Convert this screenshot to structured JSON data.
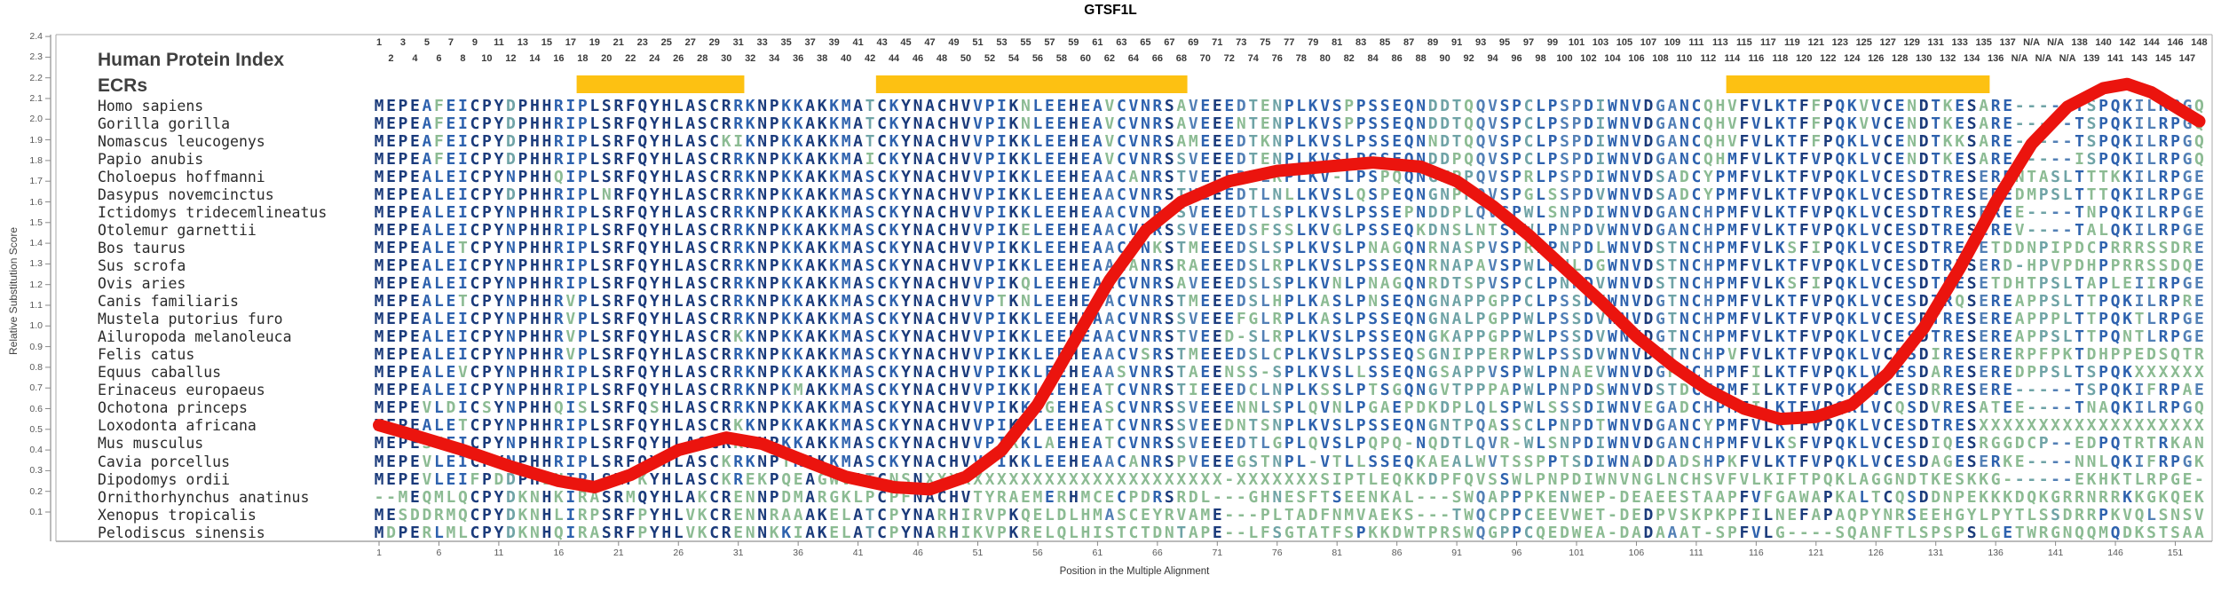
{
  "title": "GTSF1L",
  "header": {
    "index_label": "Human Protein Index",
    "ecrs_label": "ECRs"
  },
  "axes": {
    "y_label": "Relative Substitution Score",
    "x_label": "Position in the Multiple Alignment",
    "y_min": 0.1,
    "y_max": 2.4,
    "y_step": 0.1,
    "x_tick_start": 1,
    "x_tick_step": 5,
    "x_tick_end": 151
  },
  "colors": {
    "ecr_bar": "#FDC112",
    "curve": "#EB140E",
    "tier1": "#1B3B7B",
    "tier2": "#2E62AE",
    "tier3": "#5380B6",
    "tier4": "#6FA3A6",
    "tier5": "#8CBB93",
    "frame": "#A9A9A9",
    "tick": "#8A8A8A"
  },
  "alignment": {
    "num_columns": 153,
    "column_label_spec": {
      "numbered_to": 137,
      "na_label": "N/A",
      "na_count": 5,
      "resume_from": 138,
      "resume_to": 148
    },
    "ecr_regions": [
      {
        "start_col": 18,
        "end_col": 31
      },
      {
        "start_col": 43,
        "end_col": 68
      },
      {
        "start_col": 114,
        "end_col": 135
      }
    ],
    "species": [
      {
        "name": "Homo sapiens",
        "seq": "MEPEAFEICPYDPHHRIPLSRFQYHLASCRRKNPKKAKKMATCKYNACHVVPIKNLEEHEAVCVNRSAVEEEDTENPLKVSPPSSEQNDDTQQVSPCLPSPDIWNVDGANCQHVFVLKTFFPQKVVCENDTKESARE-----TSPQKILRPGQ"
      },
      {
        "name": "Gorilla gorilla",
        "seq": "MEPEAFEICPYDPHHRIPLSRFQYHLASCRRKNPKKAKKMATCKYNACHVVPIKNLEEHEAVCVNRSAVEEENTENPLKVSPPSSEQNDDTQQVSPCLPSPDIWNVDGANCQHVFVLKTFFPQKVVCENDTKESARE-----TSPQKILRPGQ"
      },
      {
        "name": "Nomascus leucogenys",
        "seq": "MEPEAFEICPYDPHHRIPLSRFQYHLASCKIKNPKKAKKMATCKYNACHVVPIKKLEEHEAVCVNRSAMEEEDTKNPLKVSLPSSEQNNDTQQVSPCLPSPDIWNVDGANCQHVFVLKTFFPQKLVCENDTKKSARE-----TSPQKILRPGQ"
      },
      {
        "name": "Papio anubis",
        "seq": "MEPEAFEICPYDPHHRIPLSRFQYHLASCRRKNPKKAKKMAICKYNACHVVPIKKLEEHEAVCVNRSSVEEEDTENPLKVSLPSSEQNDDPQQVSPCLPSPDIWNVDGANCQHMFVLKTFVPQKLVCENDTKESARE-----ISPQKILRPGQ"
      },
      {
        "name": "Choloepus hoffmanni",
        "seq": "MEPEALEICPYNPHHQIPLSRFQYHLASCRRKNPKKAKKMASCKYNACHVVPIKKLEEHEAACANRSTVEEEDTLKPLKV-LPSPQQNGKPPQVSPRLPSPDIWNVDSADCYPMFVLKTFVPQKLVCESDTRESERENTASLTTTKKILRPGE"
      },
      {
        "name": "Dasypus novemcinctus",
        "seq": "MEPEALEICPYDPHHRIPLNRFQYHLASCRRKNPKKAKKMASCKYNACHVVPIKKLEEHEAACVNRSTVEEEDTLNLLKVSLQSPEQNGNPPQVSPGLSSPDVWNVDSADCYPMFVLKTFVPQKLVCESDTRESEREDMPSLTTTQKILRPGE"
      },
      {
        "name": "Ictidomys tridecemlineatus",
        "seq": "MEPEALEICPYNPHHRIPLSRFQYHLASCRRKNPKKAKKMASCKYNACHVVPIKKLEEHEAACVNRSSVEEEDTLSPLKVSLPSSEPNDDPLQVSPWLSNPDIWNVDGANCHPMFVLKTFVPQKLVCESDTRESEREE----TNPQKILRPGE"
      },
      {
        "name": "Otolemur garnettii",
        "seq": "MEPEALEICPYNPHHRIPLSRFQYHLASCRRKNPKKAKKMASCKYNACHVVPIKELEEHEAACVNRSSVEEEDSFSSLKVGLPSSEQKDNSLNTSPWLPNPDVWNVDGANCHPMFVLKTFVPQKLVCESDTRESEREV----TALQKILRPGE"
      },
      {
        "name": "Bos taurus",
        "seq": "MEPEALETCPYNPHHRIPLSRFQYHLASCRRKNPKKAKKMASCKYNACHVVPIKKLEEHEAACVNKSTMEEEDSLSPLKVSLPNAGQNRNASPVSPRLPNPDLWNVDSTNCHPMFVLKSFIPQKLVCESDTRESETDDNPIPDCPRRRSSDRE"
      },
      {
        "name": "Sus scrofa",
        "seq": "MEPEALEICPYNPHHRIPLSRFQYHLASCRRKNPKKAKKMASCKYNACHVVPIKKLEEHEAACANRSRAEEEDSLRPLKVSLPSSEQNRNAPAVSPWLPNLDGWNVDSTNCHPMFVLKTFVPQKLVCESDTRESERD-HPVPDHPPRRSSDQE"
      },
      {
        "name": "Ovis aries",
        "seq": "MEPEALEICPYNPHHRIPLSRFQYHLASCRRKNPKKAKKMASCKYNACHVVPIKQLEEHEAACVNRSAVEEEDSLSPLKVNLPNAGQNRDTSPVSPCLPNPDVWNVDSTNCHPMFVLKSFIPQKLVCESDTRESETDHTPSLTAPLEIIRPGE"
      },
      {
        "name": "Canis familiaris",
        "seq": "MEPEALETCPYNPHHRVPLSRFQYHLASCRRKNPKKAKKMASCKYNACHVVPTKNLEEHEAACVNRSTMEEEDSLHPLKASLPNSEQNGNAPPGPPCLPSSDVWNVDGTNCHPMFVLKTFVPQKLVCESDTRQSEREAPPSLTTPQKILRPRE"
      },
      {
        "name": "Mustela putorius furo",
        "seq": "MEPEALEICPYNPHHRVPLSRFQYHLASCRRKNPKKAKKMASCKYNACHVVPIKKLEEHEAACVNRSSVEEEFGLRPLKASLPSSEQNGNALPGPPWLPSSDVWNVDGTNCHPMFVLKTFVPQKLVCESDTRESEREAPPPLTTPQKTLRPGE"
      },
      {
        "name": "Ailuropoda melanoleuca",
        "seq": "MEPEALEICPYNPHHRVPLSRFQYHLASCRKKNPKKAKKMASCKYNACHVVPIKKLEEHEAACVNRSTVEED-SLRPLKVSLPSSEQNGKAPPGPPWLPSSDVWNVDGTNCHPMFVLKTFVPQKLVCESDTRESEREAPPSLTTPQNTLRPGE"
      },
      {
        "name": "Felis catus",
        "seq": "MEPEALEICPYNPHHRVPLSRFQYHLASCRRKNPKKAKKMASCKYNACHVVPIKKLEEHEAACVSRSTMEEEDSLCPLKVSLPSSEQSGNIPPERPWLPSSDVWNVDSTNCHPVFVLKTFVPQKLVCESDIRESERERPFPKTDHPPEDSQTR"
      },
      {
        "name": "Equus caballus",
        "seq": "MEPEALEVCPYNPHHRIPLSRFQYHLASCRRKNPKKAKKMASCKYNACHVVPIKKLEEHEAASVNRSTAEENSS-SPLKVSLLSSEQNGSAPPVSPWLPNAEVWNVDGPNCHPMFILKTFVPQKLVCESDARESEREDPPSLTSPQKXXXXXX"
      },
      {
        "name": "Erinaceus europaeus",
        "seq": "MEPEALEICPYNPHHRIPLSRFQYHLASCRRKNPKMAKKMASCKYNACHVVPIKKLEEHEATCVNRSTIEEEDCLNPLKSSLPTSGQNGVTPPPAPWLPNPDSWNVDSTDCHPMFILKTFVPQKLVCESDRRESERE-----TSPQKIFRPAE"
      },
      {
        "name": "Ochotona princeps",
        "seq": "MEPEVLDICSYNPHHQISLSRFQSHLASCRRKNPKKAKKMASCKYNACHVVPIKKLGEHEASCVNRSSVEEENNLSPLQVNLPGAEPDKDPLQLSPWLSSSDIWNVEGADCHPMFILKTFVPQKLVCQSDVRESATEE----TNAQKILRPGQ"
      },
      {
        "name": "Loxodonta africana",
        "seq": "MEPEALETCPYNPHHRIPLSRFQYHLASCRKKNPKKAKKMASCKYNACHVVPIKKLEEHEATCVNRSSVEEDNTSNPLKVSLPSSEQNGNTPQASSCLPNPDTWNVDGANCYPMFVLKTFVPQKLVCESDTRESXXXXXXXXXXXXXXXXXXX"
      },
      {
        "name": "Mus musculus",
        "seq": "MEPESIEICPYNPHHRIPLSRFQYHLASCRKKNPKKAKKMASCKYNACHVVPIRKLAEHEATCVNRSSVEEEDTLGPLQVSLPQPQ-NQDTLQVR-WLSNPDIWNVDGANCHPMFVLKSFVPQKLVCESDIQESRGGDCP--EDPQTRTRKAN"
      },
      {
        "name": "Cavia porcellus",
        "seq": "MEPEVLEICPYNPHHRIPLSRFQYHLASCKRKNPTKAKKMASCKYNACHVVPIKKLEEHEAACANRSPVEEEGSTNPL-VTLLSSEQKAEALWVTSSPPTSDIWNADDADSHPKFVLKTFVPQKLVCESDAGESERKE----NNLQKIFRPGK"
      },
      {
        "name": "Dipodomys ordii",
        "seq": "MEPEVLEIFPDDPHLHIPLSRFKYHLASCKREKPQEAGWVATCNSNXXXXXXXXXXXXXXXXXXXXXXXXX-XXXXXXXSIPTLEQKKDPFQVSSWLPNPDIWNVNGLNCHSVFVLKIFTPQKLAGGNDTKESKKG------EKHKTLRPGE"
      },
      {
        "name": "Ornithorhynchus anatinus",
        "seq": "--MEQMLQCPYDKNHKIRASRMQYHLAKCRENNPDMARGKLPCPFNACHVTYRAEMERHMCECPDRSRDL---GHNESFTSEENKAL---SWQAPPPKENWEP-DEAEESTAAPFVFGAWAPKALTCQSDDNPEKKKDQKGRRNRRKKGKQEK"
      },
      {
        "name": "Xenopus tropicalis",
        "seq": "MESDDRMQCPYDKNHLIRPSRFPYHLVKCRENNRAAAKELATCPYNARHIRVPKQELDLHMASCEYRVAME---PLTADFNMVAEKS---TWQCPPCEEVWET-DEDPVSKPKPFILNEFAPAQPYNRSEEHGYLPYTLSSDRRPKVQLSNSV"
      },
      {
        "name": "Pelodiscus sinensis",
        "seq": "MDPERLMLCPYDKNHQIRASRFPYHLVKCRENNKKIAKELATCPYNARHIKVPKRELQLHISTCTDNTAPE--LFSGTATFSPKKDWTPRSWQGPPCQEDWEA-DADAAAT-SPFVLG----SQANFTLSPSPSLGETWRGNQQMQDKSTSAA"
      }
    ]
  },
  "chart_data": {
    "type": "line",
    "title": "GTSF1L",
    "xlabel": "Position in the Multiple Alignment",
    "ylabel": "Relative Substitution Score",
    "ylim": [
      0.1,
      2.4
    ],
    "grid": false,
    "legend": "none",
    "x_ticks": [
      1,
      6,
      11,
      16,
      21,
      26,
      31,
      36,
      41,
      46,
      51,
      56,
      61,
      66,
      71,
      76,
      81,
      86,
      91,
      96,
      101,
      106,
      111,
      116,
      121,
      126,
      131,
      136,
      141,
      146,
      151
    ],
    "series": [
      {
        "name": "Relative Substitution Score",
        "color": "#EB140E",
        "points": [
          [
            1,
            0.52
          ],
          [
            4,
            0.47
          ],
          [
            8,
            0.4
          ],
          [
            12,
            0.32
          ],
          [
            16,
            0.25
          ],
          [
            19,
            0.22
          ],
          [
            22,
            0.28
          ],
          [
            26,
            0.4
          ],
          [
            30,
            0.46
          ],
          [
            33,
            0.43
          ],
          [
            36,
            0.36
          ],
          [
            40,
            0.27
          ],
          [
            44,
            0.22
          ],
          [
            47,
            0.21
          ],
          [
            50,
            0.27
          ],
          [
            53,
            0.4
          ],
          [
            56,
            0.62
          ],
          [
            59,
            0.92
          ],
          [
            62,
            1.22
          ],
          [
            65,
            1.46
          ],
          [
            68,
            1.6
          ],
          [
            72,
            1.7
          ],
          [
            76,
            1.75
          ],
          [
            80,
            1.77
          ],
          [
            84,
            1.79
          ],
          [
            88,
            1.77
          ],
          [
            91,
            1.7
          ],
          [
            94,
            1.58
          ],
          [
            97,
            1.44
          ],
          [
            100,
            1.28
          ],
          [
            103,
            1.12
          ],
          [
            106,
            0.95
          ],
          [
            109,
            0.81
          ],
          [
            112,
            0.69
          ],
          [
            115,
            0.6
          ],
          [
            118,
            0.55
          ],
          [
            121,
            0.56
          ],
          [
            124,
            0.62
          ],
          [
            127,
            0.77
          ],
          [
            130,
            0.99
          ],
          [
            133,
            1.28
          ],
          [
            136,
            1.6
          ],
          [
            139,
            1.88
          ],
          [
            142,
            2.06
          ],
          [
            145,
            2.15
          ],
          [
            147,
            2.17
          ],
          [
            149,
            2.13
          ],
          [
            151,
            2.06
          ],
          [
            153,
            1.99
          ]
        ]
      }
    ],
    "ecr_regions": [
      {
        "start_col": 18,
        "end_col": 31
      },
      {
        "start_col": 43,
        "end_col": 68
      },
      {
        "start_col": 114,
        "end_col": 135
      }
    ]
  }
}
